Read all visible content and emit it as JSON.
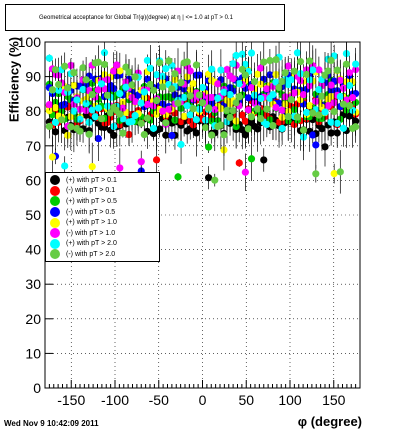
{
  "header": {
    "title": "Geometrical acceptance for Global Tr(φ)(degree) at η | <= 1.0 at pT > 0.1"
  },
  "footer": {
    "timestamp": "Wed Nov  9 10:42:09 2011"
  },
  "chart_data": {
    "type": "scatter",
    "ylabel": "Efficiency (%)",
    "xlabel": "φ (degree)",
    "xlim": [
      -180,
      180
    ],
    "ylim": [
      0,
      100
    ],
    "xticks": [
      -150,
      -100,
      -50,
      0,
      50,
      100,
      150
    ],
    "yticks": [
      0,
      10,
      20,
      30,
      40,
      50,
      60,
      70,
      80,
      90,
      100
    ],
    "grid": true,
    "legend_position": "middle-left",
    "series": [
      {
        "name": "(+) with pT > 0.1",
        "color": "#000000",
        "level": 76,
        "spread": 3
      },
      {
        "name": "(-) with pT > 0.1",
        "color": "#ff0000",
        "level": 80,
        "spread": 4
      },
      {
        "name": "(+) with pT > 0.5",
        "color": "#00cc00",
        "level": 83,
        "spread": 6
      },
      {
        "name": "(-) with pT > 0.5",
        "color": "#0000ff",
        "level": 86,
        "spread": 5
      },
      {
        "name": "(+) with pT > 1.0",
        "color": "#ffff00",
        "level": 85,
        "spread": 7
      },
      {
        "name": "(-) with pT > 1.0",
        "color": "#ff00ff",
        "level": 87,
        "spread": 7
      },
      {
        "name": "(+) with pT > 2.0",
        "color": "#00ffff",
        "level": 86,
        "spread": 11
      },
      {
        "name": "(-) with pT > 2.0",
        "color": "#66cc44",
        "level": 84,
        "spread": 11
      }
    ]
  }
}
